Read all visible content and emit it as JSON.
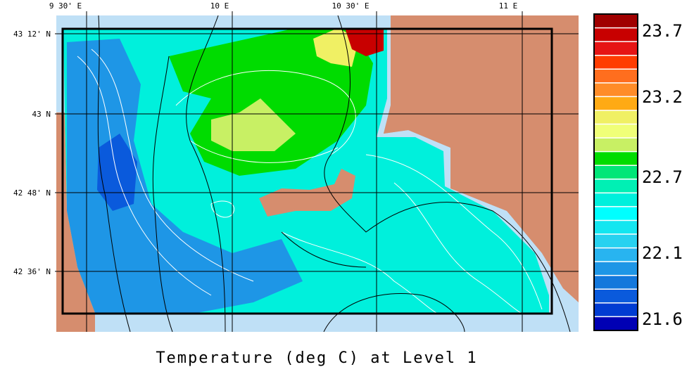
{
  "title": "Temperature (deg C) at Level 1",
  "longitude_labels": [
    "9 30' E",
    "10 E",
    "10 30' E",
    "11 E"
  ],
  "latitude_labels": [
    "43 12' N",
    "43 N",
    "42 48' N",
    "42 36' N"
  ],
  "colorbar": {
    "labels": [
      "23.7",
      "23.2",
      "22.7",
      "22.1",
      "21.6"
    ],
    "colors": [
      "#a00000",
      "#c80000",
      "#e61414",
      "#ff3c00",
      "#ff6e1e",
      "#ff8c28",
      "#ffaa14",
      "#f0f064",
      "#f0ff78",
      "#c8f064",
      "#00dc00",
      "#00e678",
      "#00f0b4",
      "#00f0dc",
      "#00ffff",
      "#14e6f0",
      "#28d2f0",
      "#28b4f0",
      "#1e96e6",
      "#1478dc",
      "#0a5adc",
      "#003cd2",
      "#0000b4"
    ]
  },
  "colors": {
    "land": "#d68d6e",
    "shelf": "#bfe0f6",
    "background": "#ffffff"
  }
}
